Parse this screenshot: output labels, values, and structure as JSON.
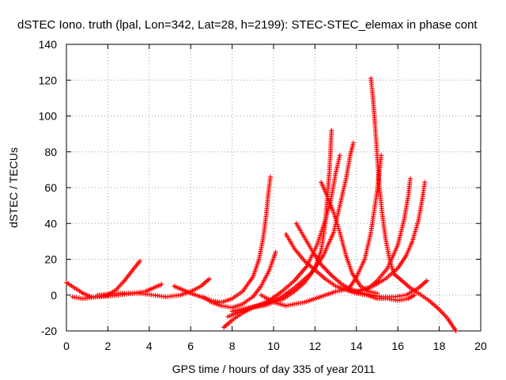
{
  "chart_data": {
    "type": "scatter",
    "title": "dSTEC Iono. truth (lpal, Lon=342, Lat=28, h=2199): STEC-STEC_elemax in phase cont",
    "xlabel": "GPS time / hours of day 335 of year 2011",
    "ylabel": "dSTEC  / TECUs",
    "xlim": [
      0,
      20
    ],
    "ylim": [
      -20,
      140
    ],
    "x_ticks": [
      "0",
      "2",
      "4",
      "6",
      "8",
      "10",
      "12",
      "14",
      "16",
      "18",
      "20"
    ],
    "y_ticks": [
      "-20",
      "0",
      "20",
      "40",
      "60",
      "80",
      "100",
      "120",
      "140"
    ],
    "grid": true,
    "marker": "plus",
    "color": "#ff0000",
    "series": [
      {
        "points": [
          [
            0.0,
            7
          ],
          [
            0.4,
            4
          ],
          [
            0.8,
            1
          ],
          [
            1.2,
            -1
          ],
          [
            1.6,
            -1
          ],
          [
            2.0,
            0
          ],
          [
            2.4,
            3
          ],
          [
            2.8,
            8
          ],
          [
            3.2,
            14
          ],
          [
            3.55,
            19
          ]
        ]
      },
      {
        "points": [
          [
            0.3,
            -1
          ],
          [
            0.8,
            -2
          ],
          [
            1.5,
            -1
          ],
          [
            2.5,
            0
          ],
          [
            3.2,
            1
          ],
          [
            3.8,
            2
          ],
          [
            4.2,
            4
          ],
          [
            4.6,
            6
          ]
        ]
      },
      {
        "points": [
          [
            1.5,
            0
          ],
          [
            2.5,
            1
          ],
          [
            3.5,
            1
          ],
          [
            4.2,
            0
          ],
          [
            4.8,
            -1
          ],
          [
            5.5,
            0
          ],
          [
            6.0,
            2
          ],
          [
            6.5,
            5
          ],
          [
            6.9,
            9
          ]
        ]
      },
      {
        "points": [
          [
            5.2,
            5
          ],
          [
            5.6,
            3
          ],
          [
            6.0,
            1
          ],
          [
            6.5,
            -1
          ],
          [
            7.0,
            -3
          ],
          [
            7.5,
            -4
          ],
          [
            8.0,
            -2
          ],
          [
            8.5,
            2
          ],
          [
            9.0,
            10
          ],
          [
            9.3,
            20
          ],
          [
            9.5,
            32
          ],
          [
            9.65,
            45
          ],
          [
            9.75,
            57
          ],
          [
            9.85,
            66
          ]
        ]
      },
      {
        "points": [
          [
            6.6,
            -1
          ],
          [
            7.0,
            -4
          ],
          [
            7.5,
            -6
          ],
          [
            8.0,
            -7
          ],
          [
            8.5,
            -5
          ],
          [
            9.0,
            -1
          ],
          [
            9.4,
            5
          ],
          [
            9.8,
            14
          ],
          [
            10.1,
            24
          ]
        ]
      },
      {
        "points": [
          [
            7.6,
            -18
          ],
          [
            8.0,
            -14
          ],
          [
            8.5,
            -10
          ],
          [
            9.0,
            -7
          ],
          [
            9.5,
            -6
          ],
          [
            10.0,
            -4
          ],
          [
            10.5,
            -2
          ],
          [
            11.0,
            2
          ],
          [
            11.5,
            7
          ],
          [
            12.0,
            15
          ],
          [
            12.3,
            25
          ],
          [
            12.5,
            40
          ],
          [
            12.6,
            55
          ],
          [
            12.7,
            70
          ],
          [
            12.75,
            80
          ],
          [
            12.8,
            92
          ]
        ]
      },
      {
        "points": [
          [
            7.8,
            -12
          ],
          [
            8.5,
            -9
          ],
          [
            9.2,
            -6
          ],
          [
            9.8,
            -3
          ],
          [
            10.4,
            2
          ],
          [
            11.0,
            8
          ],
          [
            11.6,
            16
          ],
          [
            12.1,
            28
          ],
          [
            12.5,
            42
          ],
          [
            12.8,
            55
          ],
          [
            13.0,
            68
          ],
          [
            13.2,
            78
          ]
        ]
      },
      {
        "points": [
          [
            8.0,
            -9
          ],
          [
            8.8,
            -7
          ],
          [
            9.6,
            -5
          ],
          [
            10.4,
            -1
          ],
          [
            11.0,
            4
          ],
          [
            11.8,
            12
          ],
          [
            12.4,
            22
          ],
          [
            12.9,
            35
          ],
          [
            13.2,
            50
          ],
          [
            13.5,
            65
          ],
          [
            13.7,
            78
          ],
          [
            13.85,
            85
          ]
        ]
      },
      {
        "points": [
          [
            9.4,
            0
          ],
          [
            10.0,
            -4
          ],
          [
            10.6,
            -6
          ],
          [
            11.0,
            -5
          ],
          [
            11.5,
            -4
          ],
          [
            12.0,
            -2
          ],
          [
            12.5,
            0
          ],
          [
            13.0,
            2
          ],
          [
            13.5,
            3
          ],
          [
            14.0,
            2
          ],
          [
            14.5,
            3
          ],
          [
            15.0,
            8
          ],
          [
            15.5,
            15
          ],
          [
            16.0,
            28
          ],
          [
            16.3,
            42
          ],
          [
            16.5,
            55
          ],
          [
            16.6,
            65
          ]
        ]
      },
      {
        "points": [
          [
            10.6,
            34
          ],
          [
            11.0,
            26
          ],
          [
            11.5,
            19
          ],
          [
            12.0,
            14
          ],
          [
            12.5,
            9
          ],
          [
            13.0,
            5
          ],
          [
            13.5,
            3
          ],
          [
            14.0,
            1
          ],
          [
            14.5,
            0
          ],
          [
            15.0,
            -2
          ],
          [
            15.5,
            -2
          ],
          [
            16.0,
            -3
          ],
          [
            16.5,
            -2
          ],
          [
            16.8,
            0
          ]
        ]
      },
      {
        "points": [
          [
            11.1,
            40
          ],
          [
            11.5,
            32
          ],
          [
            11.9,
            24
          ],
          [
            12.3,
            17
          ],
          [
            12.8,
            11
          ],
          [
            13.3,
            6
          ],
          [
            13.8,
            3
          ],
          [
            14.3,
            1
          ],
          [
            14.8,
            0
          ],
          [
            15.2,
            -1
          ],
          [
            15.8,
            -1
          ],
          [
            16.4,
            0
          ],
          [
            17.0,
            4
          ],
          [
            17.4,
            8
          ]
        ]
      },
      {
        "points": [
          [
            12.3,
            63
          ],
          [
            12.6,
            55
          ],
          [
            12.9,
            46
          ],
          [
            13.2,
            35
          ],
          [
            13.5,
            22
          ],
          [
            13.8,
            12
          ],
          [
            14.2,
            5
          ],
          [
            14.6,
            2
          ],
          [
            15.0,
            1
          ]
        ]
      },
      {
        "points": [
          [
            14.7,
            121
          ],
          [
            14.8,
            110
          ],
          [
            14.9,
            95
          ],
          [
            15.0,
            78
          ],
          [
            15.1,
            62
          ],
          [
            15.25,
            45
          ],
          [
            15.4,
            32
          ],
          [
            15.6,
            20
          ],
          [
            15.8,
            12
          ],
          [
            16.0,
            10
          ],
          [
            16.2,
            8
          ],
          [
            16.6,
            4
          ],
          [
            17.0,
            1
          ],
          [
            17.5,
            -3
          ],
          [
            18.0,
            -8
          ],
          [
            18.4,
            -13
          ],
          [
            18.8,
            -20
          ]
        ]
      },
      {
        "points": [
          [
            13.6,
            3
          ],
          [
            14.0,
            10
          ],
          [
            14.4,
            20
          ],
          [
            14.7,
            35
          ],
          [
            15.0,
            58
          ],
          [
            15.1,
            68
          ],
          [
            15.2,
            78
          ]
        ]
      },
      {
        "points": [
          [
            14.2,
            3
          ],
          [
            14.8,
            5
          ],
          [
            15.4,
            9
          ],
          [
            16.0,
            15
          ],
          [
            16.4,
            22
          ],
          [
            16.7,
            30
          ],
          [
            17.0,
            42
          ],
          [
            17.2,
            55
          ],
          [
            17.3,
            63
          ]
        ]
      }
    ]
  }
}
